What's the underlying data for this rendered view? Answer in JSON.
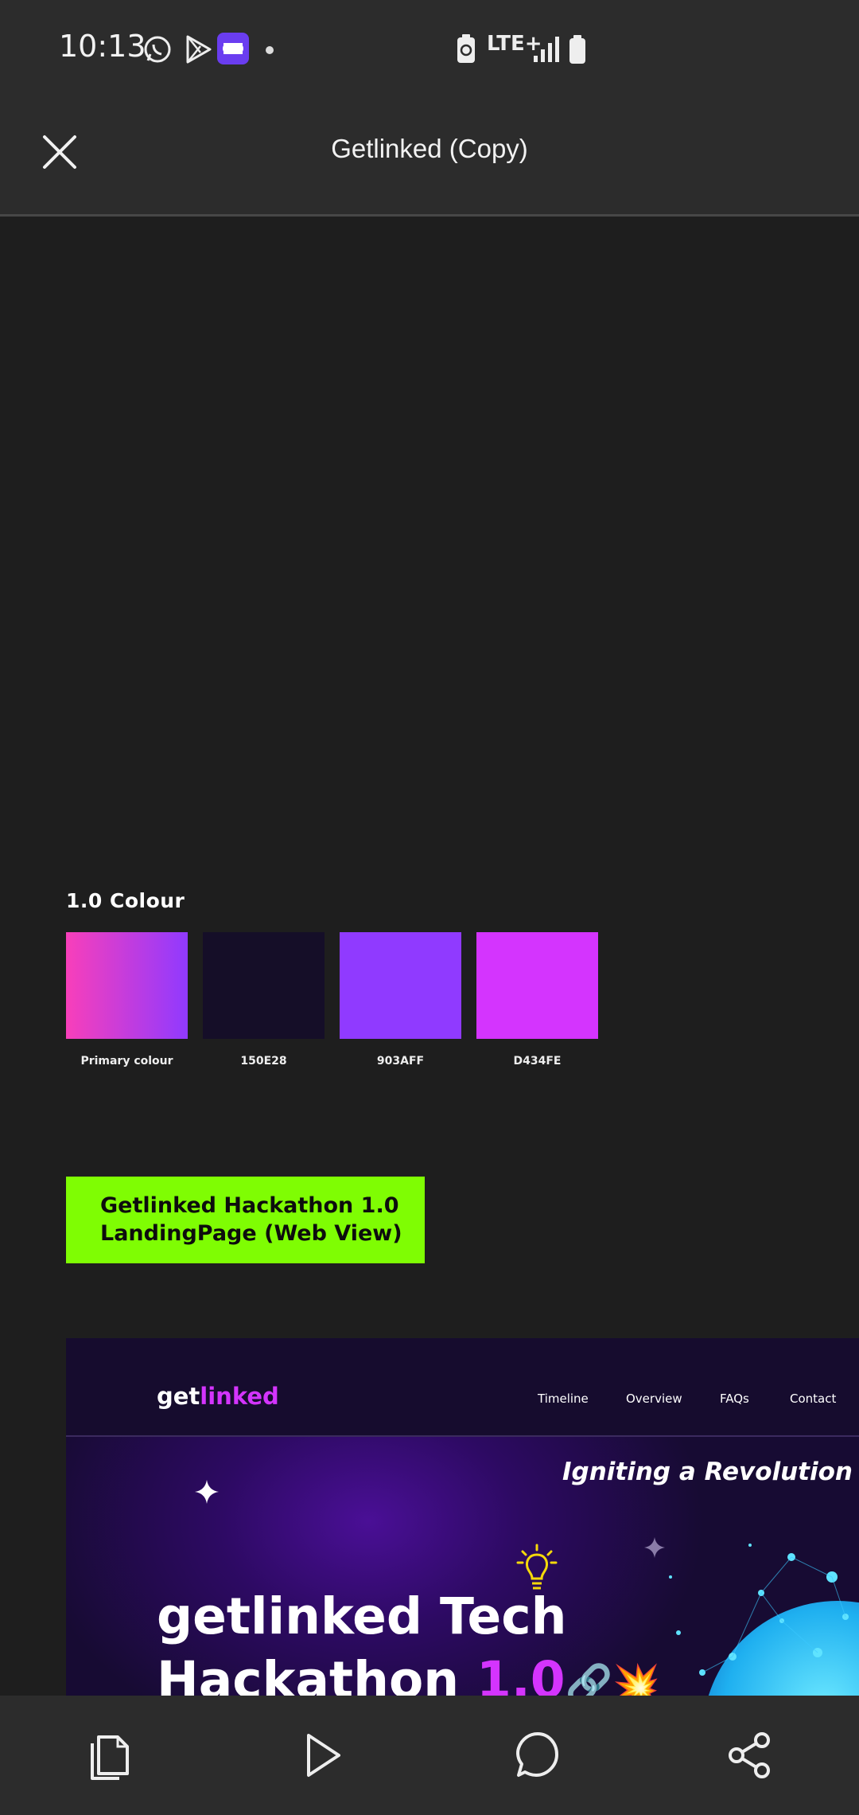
{
  "status_bar": {
    "time": "10:13",
    "network": "LTE+",
    "icons": [
      "whatsapp-icon",
      "play-store-icon",
      "app-badge-icon",
      "battery-saver-icon",
      "signal-icon",
      "battery-icon"
    ]
  },
  "header": {
    "title": "Getlinked (Copy)",
    "close_icon": "close-icon"
  },
  "canvas": {
    "colour_section": {
      "heading": "1.0  Colour",
      "swatches": [
        {
          "label": "Primary colour",
          "color_from": "#f83fba",
          "color_to": "#903aff"
        },
        {
          "label": "150E28",
          "color": "#150e28"
        },
        {
          "label": "903AFF",
          "color": "#903aff"
        },
        {
          "label": "D434FE",
          "color": "#d434fe"
        }
      ]
    },
    "section_label": {
      "line1": "Getlinked Hackathon 1.0",
      "line2": "LandingPage (Web View)",
      "background": "#7ffd03"
    },
    "landing_page": {
      "logo_part1": "get",
      "logo_part2": "linked",
      "nav_links": [
        "Timeline",
        "Overview",
        "FAQs",
        "Contact"
      ],
      "tagline": "Igniting a Revolution",
      "headline_line1": "getlinked Tech",
      "headline_line2_a": "Hackathon ",
      "headline_line2_b": "1.0",
      "emojis": "🔗💥"
    }
  },
  "bottom_bar": {
    "buttons": [
      "pages-icon",
      "play-icon",
      "comment-icon",
      "share-icon"
    ]
  }
}
